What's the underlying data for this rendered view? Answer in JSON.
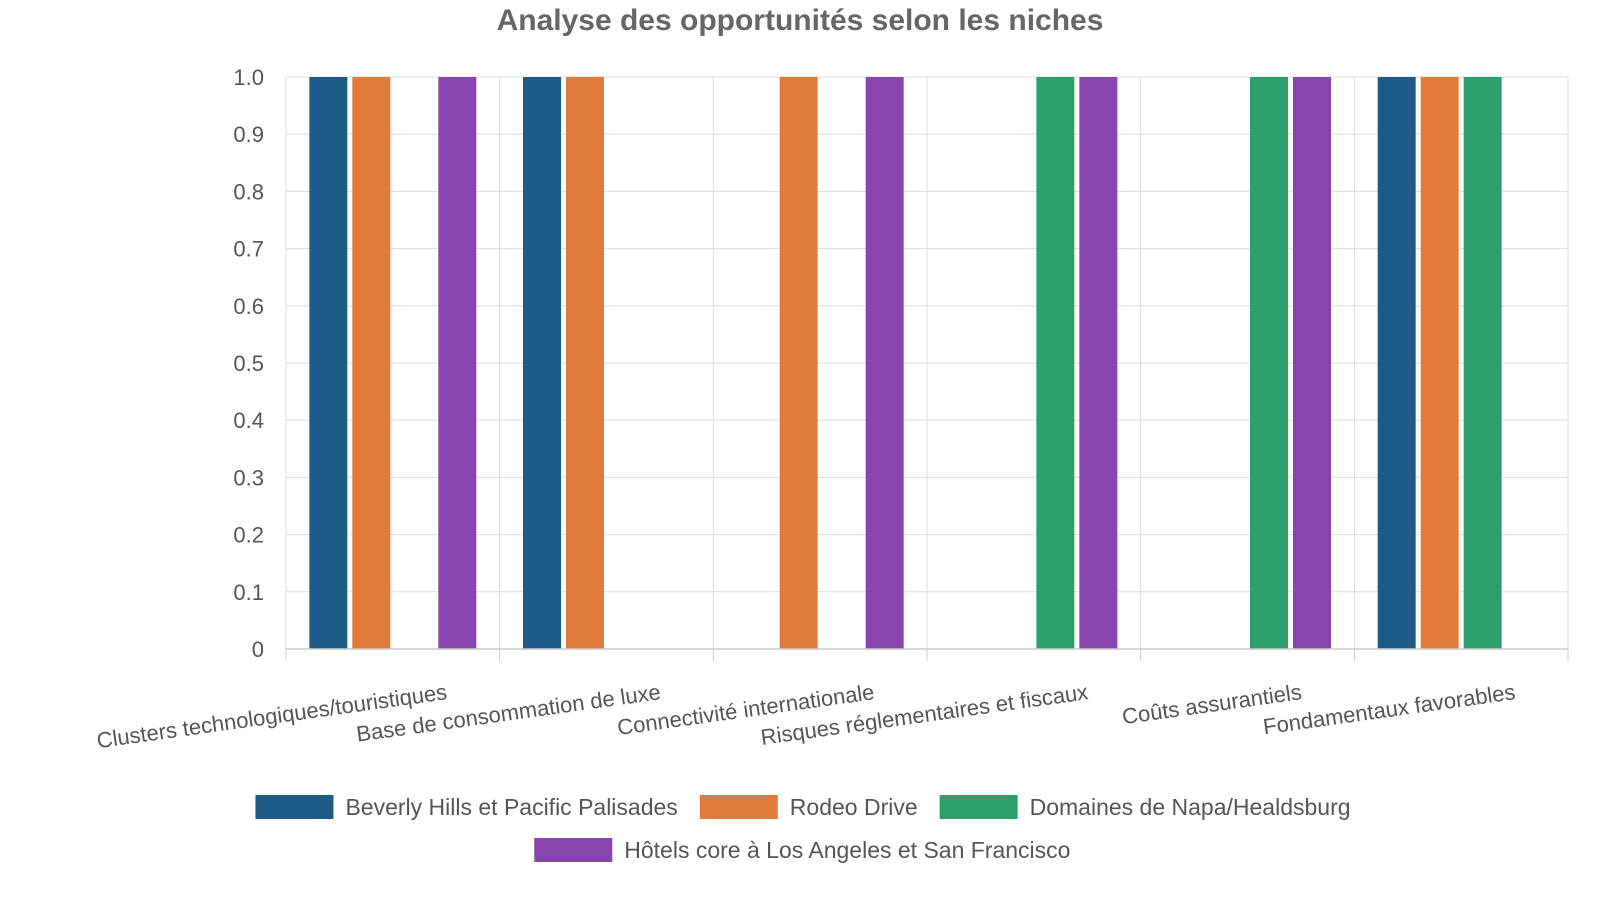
{
  "chart_data": {
    "type": "bar",
    "title": "Analyse des opportunités selon les niches",
    "xlabel": "",
    "ylabel": "",
    "ylim": [
      0,
      1.0
    ],
    "yticks": [
      "0",
      "0.1",
      "0.2",
      "0.3",
      "0.4",
      "0.5",
      "0.6",
      "0.7",
      "0.8",
      "0.9",
      "1.0"
    ],
    "grid": true,
    "legend_position": "bottom",
    "categories": [
      "Clusters technologiques/touristiques",
      "Base de consommation de luxe",
      "Connectivité internationale",
      "Risques réglementaires et fiscaux",
      "Coûts assurantiels",
      "Fondamentaux favorables"
    ],
    "series": [
      {
        "name": "Beverly Hills et Pacific Palisades",
        "color": "#1f5b87",
        "values": [
          1,
          1,
          0,
          0,
          0,
          1
        ]
      },
      {
        "name": "Rodeo Drive",
        "color": "#e07b39",
        "values": [
          1,
          1,
          1,
          0,
          0,
          1
        ]
      },
      {
        "name": "Domaines de Napa/Healdsburg",
        "color": "#2ca06b",
        "values": [
          0,
          0,
          0,
          1,
          1,
          1
        ]
      },
      {
        "name": "Hôtels core à Los Angeles et San Francisco",
        "color": "#8a44ad",
        "values": [
          1,
          0,
          1,
          1,
          1,
          0
        ]
      }
    ]
  }
}
